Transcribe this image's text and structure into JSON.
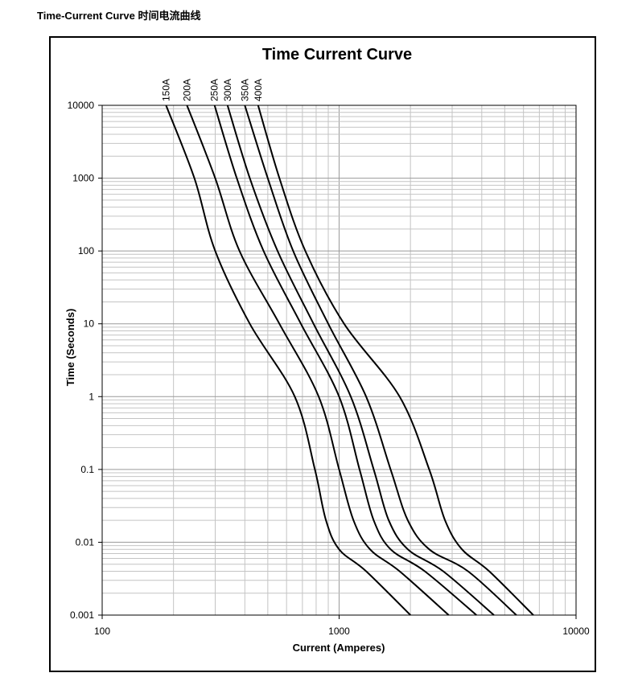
{
  "page": {
    "heading": "Time-Current Curve 时间电流曲线"
  },
  "chart_data": {
    "type": "line",
    "title": "Time Current Curve",
    "xlabel": "Current  (Amperes)",
    "ylabel": "Time (Seconds)",
    "xscale": "log",
    "yscale": "log",
    "xlim": [
      100,
      10000
    ],
    "ylim": [
      0.001,
      10000
    ],
    "x_ticks": [
      "100",
      "1000",
      "10000"
    ],
    "y_ticks": [
      "0.001",
      "0.01",
      "0.1",
      "1",
      "10",
      "100",
      "1000",
      "10000"
    ],
    "grid": true,
    "legend": "series labels rotated above plot top",
    "line_color": "#000000",
    "series": [
      {
        "name": "150A",
        "points": [
          [
            186,
            10000
          ],
          [
            245,
            1000
          ],
          [
            300,
            100
          ],
          [
            420,
            10
          ],
          [
            650,
            1
          ],
          [
            790,
            0.1
          ],
          [
            880,
            0.02
          ],
          [
            1000,
            0.008
          ],
          [
            1300,
            0.004
          ],
          [
            2000,
            0.001
          ]
        ]
      },
      {
        "name": "200A",
        "points": [
          [
            228,
            10000
          ],
          [
            300,
            1000
          ],
          [
            380,
            100
          ],
          [
            560,
            10
          ],
          [
            820,
            1
          ],
          [
            1000,
            0.1
          ],
          [
            1150,
            0.02
          ],
          [
            1350,
            0.008
          ],
          [
            1800,
            0.004
          ],
          [
            2900,
            0.001
          ]
        ]
      },
      {
        "name": "250A",
        "points": [
          [
            298,
            10000
          ],
          [
            370,
            1000
          ],
          [
            480,
            100
          ],
          [
            690,
            10
          ],
          [
            1000,
            1
          ],
          [
            1220,
            0.1
          ],
          [
            1400,
            0.02
          ],
          [
            1650,
            0.008
          ],
          [
            2300,
            0.004
          ],
          [
            3800,
            0.001
          ]
        ]
      },
      {
        "name": "300A",
        "points": [
          [
            338,
            10000
          ],
          [
            420,
            1000
          ],
          [
            550,
            100
          ],
          [
            780,
            10
          ],
          [
            1120,
            1
          ],
          [
            1400,
            0.1
          ],
          [
            1620,
            0.02
          ],
          [
            1950,
            0.008
          ],
          [
            2750,
            0.004
          ],
          [
            4500,
            0.001
          ]
        ]
      },
      {
        "name": "350A",
        "points": [
          [
            400,
            10000
          ],
          [
            500,
            1000
          ],
          [
            640,
            100
          ],
          [
            900,
            10
          ],
          [
            1300,
            1
          ],
          [
            1650,
            0.1
          ],
          [
            1950,
            0.02
          ],
          [
            2400,
            0.008
          ],
          [
            3500,
            0.004
          ],
          [
            5600,
            0.001
          ]
        ]
      },
      {
        "name": "400A",
        "points": [
          [
            455,
            10000
          ],
          [
            560,
            1000
          ],
          [
            720,
            100
          ],
          [
            1050,
            10
          ],
          [
            1800,
            1
          ],
          [
            2400,
            0.1
          ],
          [
            2800,
            0.02
          ],
          [
            3300,
            0.008
          ],
          [
            4300,
            0.004
          ],
          [
            6600,
            0.001
          ]
        ]
      }
    ]
  }
}
